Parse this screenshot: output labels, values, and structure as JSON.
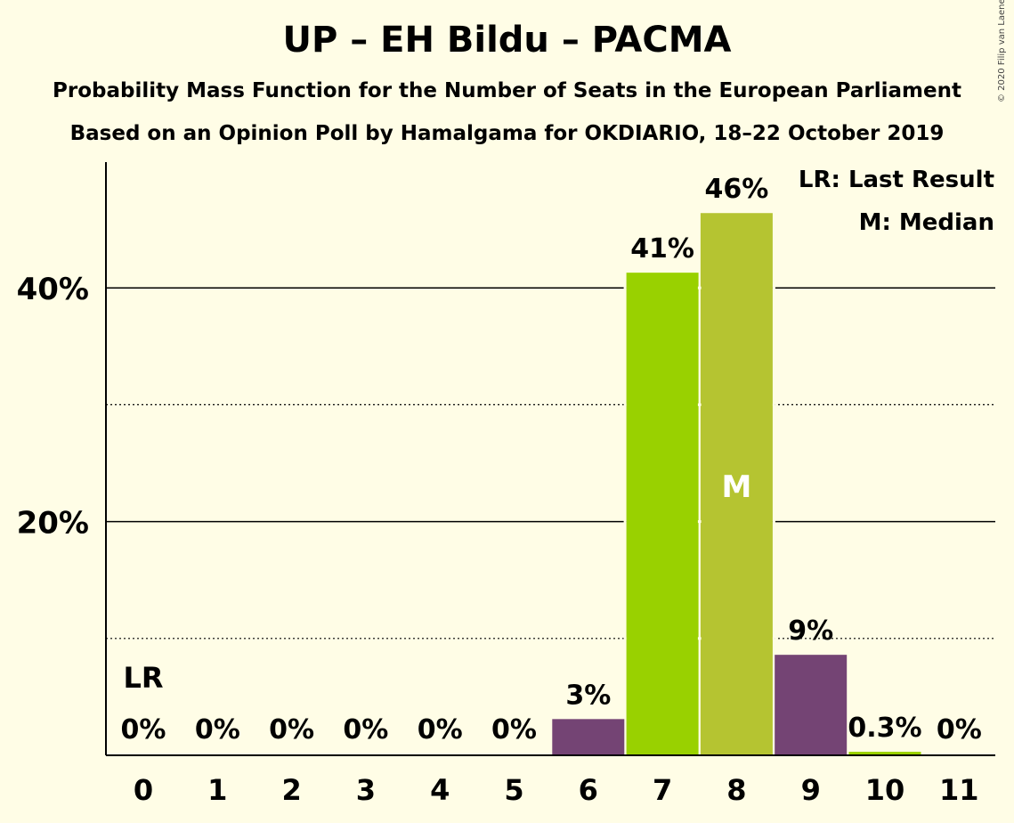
{
  "title": "UP – EH Bildu – PACMA",
  "subtitle1": "Probability Mass Function for the Number of Seats in the European Parliament",
  "subtitle2": "Based on an Opinion Poll by Hamalgama for OKDIARIO, 18–22 October 2019",
  "copyright": "© 2020 Filip van Laenen",
  "legend": {
    "last_result": "LR: Last Result",
    "median": "M: Median"
  },
  "colors": {
    "background": "#fffde6",
    "purple": "#744474",
    "green": "#99d100",
    "olive": "#b5c431"
  },
  "chart_data": {
    "type": "bar",
    "categories": [
      "0",
      "1",
      "2",
      "3",
      "4",
      "5",
      "6",
      "7",
      "8",
      "9",
      "10",
      "11"
    ],
    "values": [
      0,
      0,
      0,
      0,
      0,
      0,
      3.1,
      41.3,
      46.4,
      8.6,
      0.3,
      0
    ],
    "value_labels": [
      "0%",
      "0%",
      "0%",
      "0%",
      "0%",
      "0%",
      "3%",
      "41%",
      "46%",
      "9%",
      "0.3%",
      "0%"
    ],
    "bar_colors": [
      "#744474",
      "#744474",
      "#744474",
      "#744474",
      "#744474",
      "#744474",
      "#744474",
      "#99d100",
      "#b5c431",
      "#744474",
      "#99d100",
      "#744474"
    ],
    "ylim": [
      0,
      50
    ],
    "y_ticks": [
      20,
      40
    ],
    "y_tick_labels": [
      "20%",
      "40%"
    ],
    "y_minor_ticks": [
      10,
      30
    ],
    "last_result_category": "0",
    "last_result_label": "LR",
    "median_category": "8",
    "median_label": "M",
    "grid": true,
    "legend_position": "top-right"
  }
}
